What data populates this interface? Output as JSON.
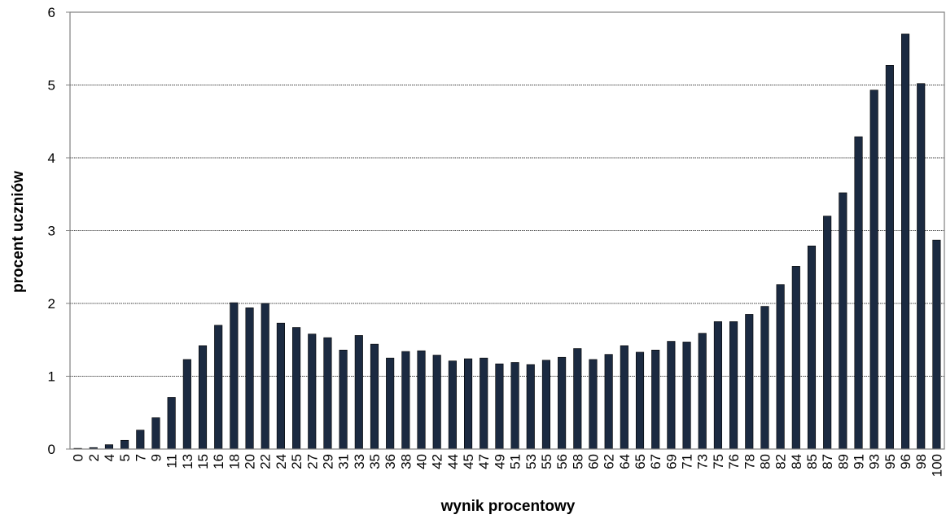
{
  "chart_data": {
    "type": "bar",
    "title": "",
    "xlabel": "wynik procentowy",
    "ylabel": "procent uczniów",
    "ylim": [
      0,
      6
    ],
    "yticks": [
      0,
      1,
      2,
      3,
      4,
      5,
      6
    ],
    "grid": true,
    "legend": "none",
    "bar_color": "#1b2a41",
    "categories": [
      "0",
      "2",
      "4",
      "5",
      "7",
      "9",
      "11",
      "13",
      "15",
      "16",
      "18",
      "20",
      "22",
      "24",
      "25",
      "27",
      "29",
      "31",
      "33",
      "35",
      "36",
      "38",
      "40",
      "42",
      "44",
      "45",
      "47",
      "49",
      "51",
      "53",
      "55",
      "56",
      "58",
      "60",
      "62",
      "64",
      "65",
      "67",
      "69",
      "71",
      "73",
      "75",
      "76",
      "78",
      "80",
      "82",
      "84",
      "85",
      "87",
      "89",
      "91",
      "93",
      "95",
      "96",
      "98",
      "100"
    ],
    "values": [
      0.01,
      0.02,
      0.06,
      0.12,
      0.26,
      0.43,
      0.71,
      1.23,
      1.42,
      1.7,
      2.01,
      1.94,
      2.0,
      1.73,
      1.67,
      1.58,
      1.53,
      1.36,
      1.56,
      1.44,
      1.25,
      1.34,
      1.35,
      1.29,
      1.21,
      1.24,
      1.25,
      1.17,
      1.19,
      1.16,
      1.22,
      1.26,
      1.38,
      1.23,
      1.3,
      1.42,
      1.33,
      1.36,
      1.48,
      1.47,
      1.59,
      1.75,
      1.75,
      1.85,
      1.96,
      2.26,
      2.51,
      2.79,
      3.2,
      3.52,
      4.29,
      4.93,
      5.27,
      5.7,
      5.02,
      2.87
    ]
  }
}
